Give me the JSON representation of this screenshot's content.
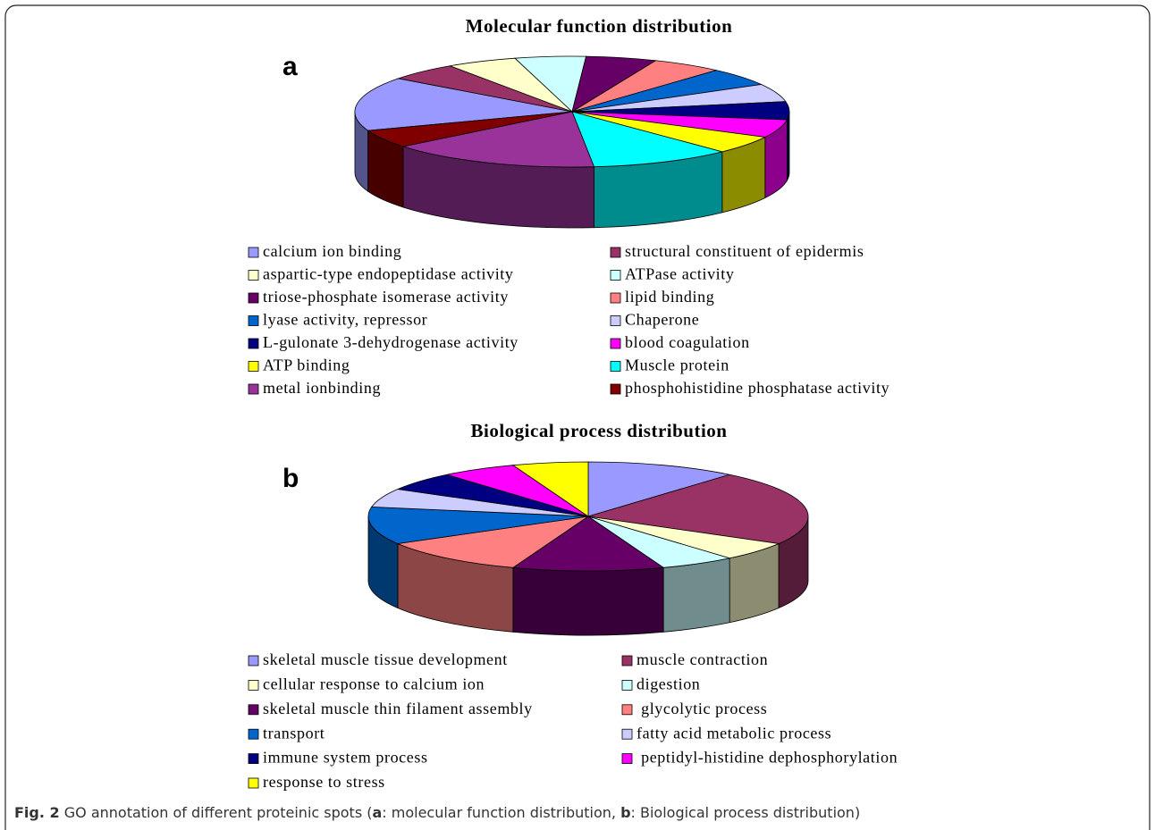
{
  "chart_data": [
    {
      "type": "pie",
      "panel_label": "a",
      "title": "Molecular function distribution",
      "categories": [
        "calcium ion binding",
        "structural constituent of epidermis",
        "aspartic-type endopeptidase activity",
        "ATPase activity",
        "triose-phosphate isomerase activity",
        "lipid binding",
        "lyase activity, repressor",
        "Chaperone",
        "L-gulonate 3-dehydrogenase activity",
        "blood coagulation",
        "ATP binding",
        "Muscle protein",
        "metal ionbinding",
        "phosphohistidine phosphatase activity"
      ],
      "values": [
        3,
        1,
        1,
        1,
        1,
        1,
        1,
        1,
        1,
        1,
        1,
        2,
        3,
        1
      ],
      "colors": [
        "#9999ff",
        "#993366",
        "#ffffcc",
        "#ccffff",
        "#660066",
        "#ff8080",
        "#0066cc",
        "#ccccff",
        "#000080",
        "#ff00ff",
        "#ffff00",
        "#00ffff",
        "#993399",
        "#800000"
      ]
    },
    {
      "type": "pie",
      "panel_label": "b",
      "title": "Biological process distribution",
      "categories": [
        "skeletal muscle tissue development",
        "muscle contraction",
        "cellular response to calcium ion",
        "digestion",
        "skeletal muscle thin filament assembly",
        " glycolytic process",
        "transport",
        "fatty acid metabolic process",
        "immune system process",
        " peptidyl-histidine dephosphorylation",
        "response to stress"
      ],
      "values": [
        2,
        4,
        1,
        1,
        2,
        2,
        2,
        1,
        1,
        1,
        1
      ],
      "colors": [
        "#9999ff",
        "#993366",
        "#ffffcc",
        "#ccffff",
        "#660066",
        "#ff8080",
        "#0066cc",
        "#ccccff",
        "#000080",
        "#ff00ff",
        "#ffff00"
      ]
    }
  ],
  "caption": {
    "label": "Fig. 2",
    "parts": [
      "GO annotation of different proteinic spots (",
      "a",
      ": molecular function distribution, ",
      "b",
      ": Biological process distribution)"
    ]
  }
}
